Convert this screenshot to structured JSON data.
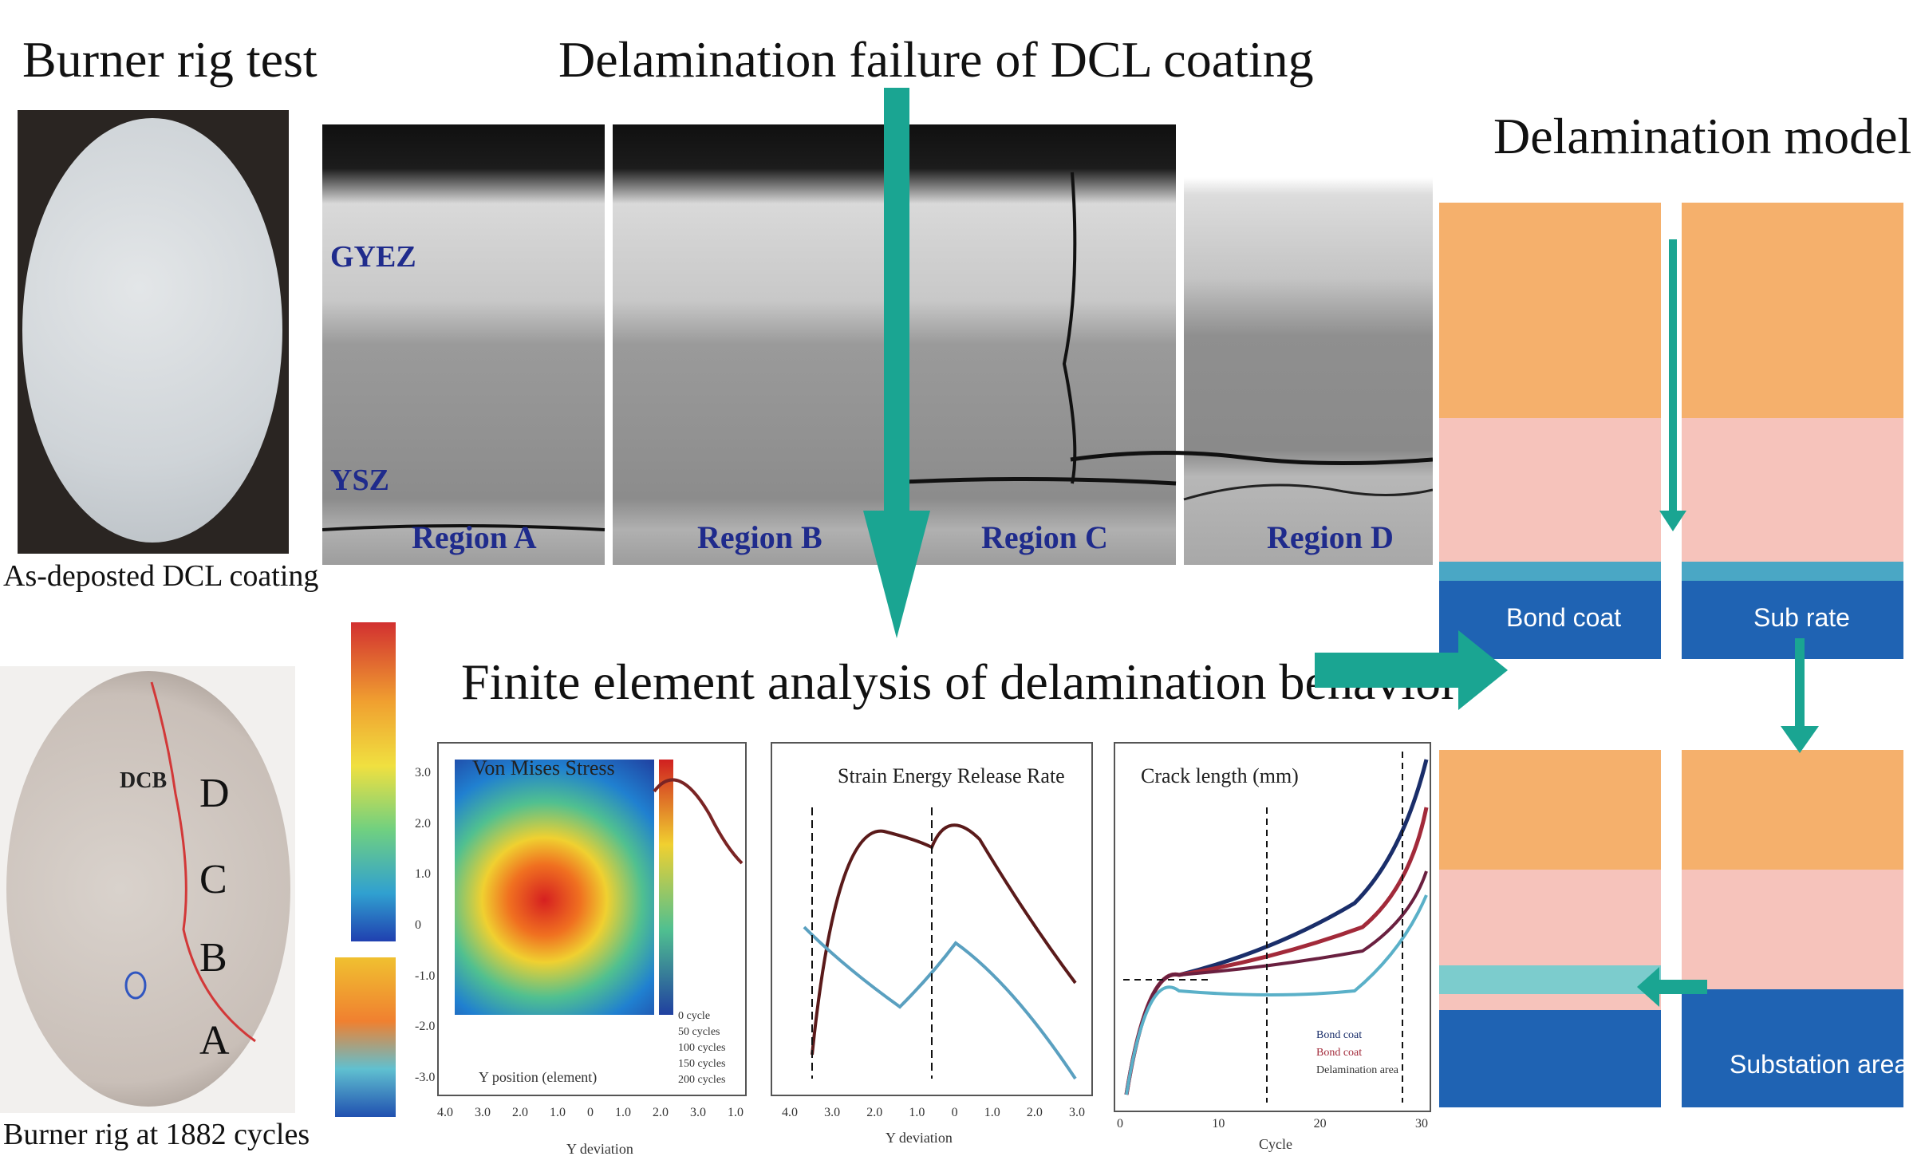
{
  "titles": {
    "burner_rig": "Burner rig test",
    "delamination_failure": "Delamination failure of DCL coating",
    "delamination_model": "Delamination model",
    "fea": "Finite element analysis of delamination behavior"
  },
  "photos": {
    "as_deposited_caption": "As-deposted DCL coating",
    "cycled_caption": "Burner rig at 1882 cycles",
    "specimen_label": "DCB",
    "region_letters": [
      "D",
      "C",
      "B",
      "A"
    ]
  },
  "sem": {
    "layer_top": "GYEZ",
    "layer_bottom": "YSZ",
    "regions": [
      "Region A",
      "Region B",
      "Region C",
      "Region D"
    ]
  },
  "model": {
    "panels": [
      "Bond coat",
      "Sub rate",
      "Substation area"
    ]
  },
  "plots": {
    "von_mises": {
      "title": "Von Mises Stress",
      "xlabel": "Y position (element)",
      "xlabel2": "Y deviation",
      "xticks": [
        "4.0",
        "3.0",
        "2.0",
        "1.0",
        "0",
        "1.0",
        "2.0",
        "3.0",
        "1.0"
      ],
      "yticks": [
        "3.0",
        "2.0",
        "1.0",
        "0",
        "-1.0",
        "-2.0",
        "-3.0"
      ],
      "legend": [
        "0 cycle",
        "50 cycles",
        "100 cycles",
        "150 cycles",
        "200 cycles"
      ]
    },
    "serr": {
      "title": "Strain Energy Release Rate",
      "xlabel": "Y deviation",
      "xticks": [
        "4.0",
        "3.0",
        "2.0",
        "1.0",
        "0",
        "1.0",
        "2.0",
        "3.0"
      ]
    },
    "crack": {
      "title": "Crack length (mm)",
      "xlabel": "Cycle",
      "legend": [
        "Bond coat",
        "Bond coat",
        "Delamination area"
      ],
      "xticks": [
        "0",
        "10",
        "20",
        "30"
      ]
    }
  },
  "colors": {
    "teal_arrow": "#1aa592",
    "bond_blue": "#1f63b3",
    "columns_orange": "#f5b06c",
    "pink": "#f6c3bb"
  }
}
